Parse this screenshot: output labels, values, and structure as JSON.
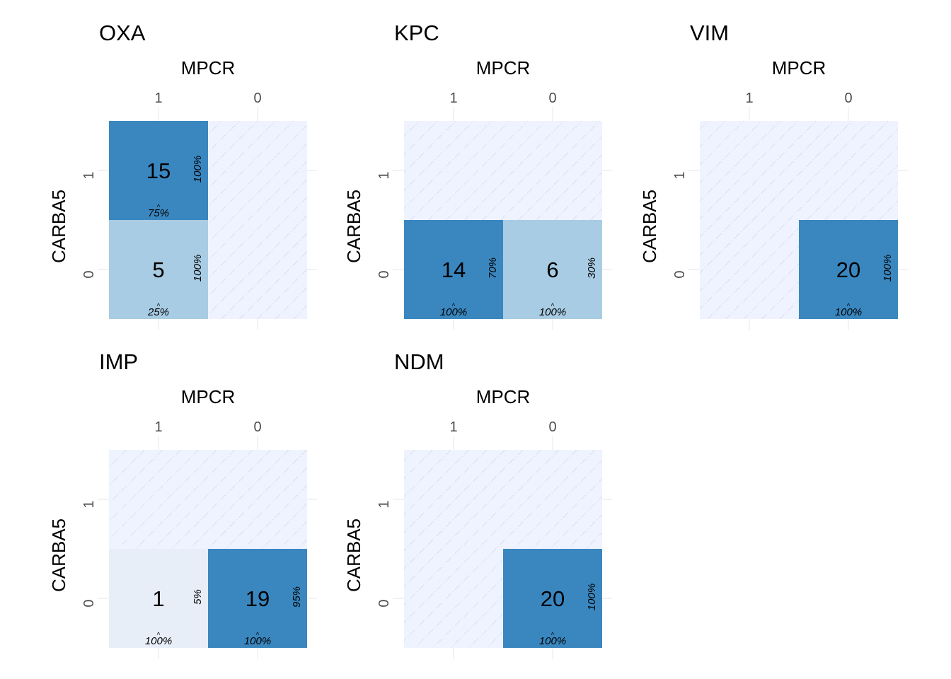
{
  "chart_data": [
    {
      "type": "heatmap",
      "title": "OXA",
      "xlabel": "MPCR",
      "ylabel": "CARBA5",
      "x_categories": [
        "1",
        "0"
      ],
      "y_categories": [
        "1",
        "0"
      ],
      "cells": [
        {
          "x": "1",
          "y": "1",
          "value": 15,
          "row_pct": "100%",
          "col_pct": "75%"
        },
        {
          "x": "1",
          "y": "0",
          "value": 5,
          "row_pct": "100%",
          "col_pct": "25%"
        },
        {
          "x": "0",
          "y": "1",
          "value": 0
        },
        {
          "x": "0",
          "y": "0",
          "value": 0
        }
      ]
    },
    {
      "type": "heatmap",
      "title": "KPC",
      "xlabel": "MPCR",
      "ylabel": "CARBA5",
      "x_categories": [
        "1",
        "0"
      ],
      "y_categories": [
        "1",
        "0"
      ],
      "cells": [
        {
          "x": "1",
          "y": "1",
          "value": 0
        },
        {
          "x": "0",
          "y": "1",
          "value": 0
        },
        {
          "x": "1",
          "y": "0",
          "value": 14,
          "row_pct": "70%",
          "col_pct": "100%"
        },
        {
          "x": "0",
          "y": "0",
          "value": 6,
          "row_pct": "30%",
          "col_pct": "100%"
        }
      ]
    },
    {
      "type": "heatmap",
      "title": "VIM",
      "xlabel": "MPCR",
      "ylabel": "CARBA5",
      "x_categories": [
        "1",
        "0"
      ],
      "y_categories": [
        "1",
        "0"
      ],
      "cells": [
        {
          "x": "1",
          "y": "1",
          "value": 0
        },
        {
          "x": "0",
          "y": "1",
          "value": 0
        },
        {
          "x": "1",
          "y": "0",
          "value": 0
        },
        {
          "x": "0",
          "y": "0",
          "value": 20,
          "row_pct": "100%",
          "col_pct": "100%"
        }
      ]
    },
    {
      "type": "heatmap",
      "title": "IMP",
      "xlabel": "MPCR",
      "ylabel": "CARBA5",
      "x_categories": [
        "1",
        "0"
      ],
      "y_categories": [
        "1",
        "0"
      ],
      "cells": [
        {
          "x": "1",
          "y": "1",
          "value": 0
        },
        {
          "x": "0",
          "y": "1",
          "value": 0
        },
        {
          "x": "1",
          "y": "0",
          "value": 1,
          "row_pct": "5%",
          "col_pct": "100%"
        },
        {
          "x": "0",
          "y": "0",
          "value": 19,
          "row_pct": "95%",
          "col_pct": "100%"
        }
      ]
    },
    {
      "type": "heatmap",
      "title": "NDM",
      "xlabel": "MPCR",
      "ylabel": "CARBA5",
      "x_categories": [
        "1",
        "0"
      ],
      "y_categories": [
        "1",
        "0"
      ],
      "cells": [
        {
          "x": "1",
          "y": "1",
          "value": 0
        },
        {
          "x": "0",
          "y": "1",
          "value": 0
        },
        {
          "x": "1",
          "y": "0",
          "value": 0
        },
        {
          "x": "0",
          "y": "0",
          "value": 20,
          "row_pct": "100%",
          "col_pct": "100%"
        }
      ]
    }
  ],
  "colors": {
    "empty": "#eff3ff",
    "low": "#e8eef8",
    "mid": "#a8cce4",
    "high": "#3a87c0",
    "grid": "#ebebeb",
    "text": "#000000",
    "tick": "#4d4d4d"
  }
}
